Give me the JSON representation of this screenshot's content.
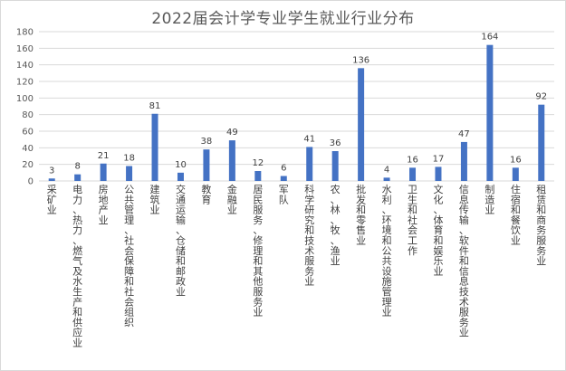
{
  "chart_data": {
    "type": "bar",
    "title": "2022届会计学专业学生就业行业分布",
    "xlabel": "",
    "ylabel": "",
    "ylim": [
      0,
      180
    ],
    "yticks": [
      0,
      20,
      40,
      60,
      80,
      100,
      120,
      140,
      160,
      180
    ],
    "grid": true,
    "legend": "none",
    "bar_color": "#4472c4",
    "grid_color": "#d9d9d9",
    "categories": [
      "采矿业",
      "电力、热力、燃气及水生产和供应业",
      "房地产业",
      "公共管理、社会保障和社会组织",
      "建筑业",
      "交通运输、仓储和邮政业",
      "教育",
      "金融业",
      "居民服务、修理和其他服务业",
      "军队",
      "科学研究和技术服务业",
      "农、林、牧、渔业",
      "批发和零售业",
      "水利、环境和公共设施管理业",
      "卫生和社会工作",
      "文化、体育和娱乐业",
      "信息传输、软件和信息技术服务业",
      "制造业",
      "住宿和餐饮业",
      "租赁和商务服务业"
    ],
    "values": [
      3,
      8,
      21,
      18,
      81,
      10,
      38,
      49,
      12,
      6,
      41,
      36,
      136,
      4,
      16,
      17,
      47,
      164,
      16,
      92
    ]
  }
}
